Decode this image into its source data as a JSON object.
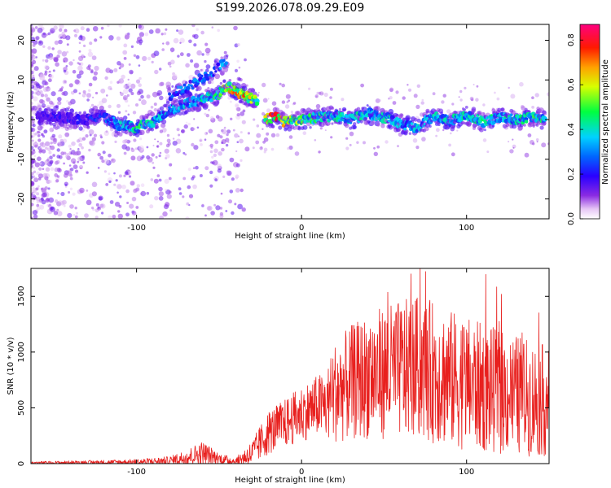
{
  "figure_title": "S199.2026.078.09.29.E09",
  "chart_data": [
    {
      "type": "heatmap",
      "title": "S199.2026.078.09.29.E09",
      "xlabel": "Height of straight line (km)",
      "ylabel": "Frequency (Hz)",
      "xlim": [
        -164,
        150
      ],
      "ylim": [
        -25,
        24
      ],
      "x_ticks": [
        -100,
        0,
        100
      ],
      "x_tick_labels": [
        "-100",
        "0",
        "100"
      ],
      "y_ticks": [
        20,
        10,
        0,
        -10,
        -20
      ],
      "y_tick_labels": [
        "20",
        "10",
        "0",
        "-10",
        "-20"
      ],
      "colorbar": {
        "label": "Normalized spectral amplitude",
        "range": [
          0,
          0.87
        ],
        "ticks": [
          0.0,
          0.2,
          0.4,
          0.6,
          0.8
        ],
        "tick_labels": [
          "0.0",
          "0.2",
          "0.4",
          "0.6",
          "0.8"
        ],
        "colormap": "rainbow (white/violet low to magenta high)"
      },
      "ridge_points": [
        [
          -160,
          0.5,
          0.15
        ],
        [
          -150,
          0.8,
          0.18
        ],
        [
          -140,
          0.3,
          0.2
        ],
        [
          -130,
          -0.2,
          0.2
        ],
        [
          -120,
          1.0,
          0.25
        ],
        [
          -110,
          -1.5,
          0.35
        ],
        [
          -100,
          -2.0,
          0.45
        ],
        [
          -90,
          -0.5,
          0.4
        ],
        [
          -80,
          2.5,
          0.35
        ],
        [
          -70,
          4.0,
          0.35
        ],
        [
          -60,
          5.0,
          0.4
        ],
        [
          -50,
          6.5,
          0.45
        ],
        [
          -45,
          8.5,
          0.6
        ],
        [
          -38,
          7.0,
          0.7
        ],
        [
          -32,
          5.5,
          0.65
        ],
        [
          -27,
          5.0,
          0.5
        ],
        [
          -22,
          0.0,
          0.6
        ],
        [
          -15,
          0.5,
          0.8
        ],
        [
          -10,
          -0.5,
          0.6
        ],
        [
          0,
          0.0,
          0.5
        ],
        [
          10,
          0.5,
          0.45
        ],
        [
          20,
          1.0,
          0.4
        ],
        [
          30,
          0.0,
          0.4
        ],
        [
          40,
          1.5,
          0.4
        ],
        [
          50,
          0.5,
          0.4
        ],
        [
          60,
          -1.0,
          0.35
        ],
        [
          70,
          -2.0,
          0.35
        ],
        [
          80,
          1.0,
          0.4
        ],
        [
          90,
          -0.5,
          0.4
        ],
        [
          100,
          1.0,
          0.4
        ],
        [
          110,
          -0.5,
          0.45
        ],
        [
          120,
          0.5,
          0.4
        ],
        [
          130,
          0.0,
          0.4
        ],
        [
          140,
          0.5,
          0.45
        ],
        [
          148,
          0.0,
          0.4
        ]
      ],
      "secondary_ridge_points": [
        [
          -80,
          6.0,
          0.3
        ],
        [
          -70,
          8.0,
          0.3
        ],
        [
          -60,
          10.5,
          0.3
        ],
        [
          -50,
          13.0,
          0.3
        ],
        [
          -45,
          15.0,
          0.35
        ]
      ]
    },
    {
      "type": "line",
      "title": "",
      "xlabel": "Height of straight line (km)",
      "ylabel": "SNR (10 * v/v)",
      "xlim": [
        -164,
        150
      ],
      "ylim": [
        0,
        1750
      ],
      "x_ticks": [
        -100,
        0,
        100
      ],
      "x_tick_labels": [
        "-100",
        "0",
        "100"
      ],
      "y_ticks": [
        0,
        500,
        1000,
        1500
      ],
      "y_tick_labels": [
        "0",
        "500",
        "1000",
        "1500"
      ],
      "color": "#e8201e",
      "envelope": {
        "x": [
          -164,
          -120,
          -100,
          -80,
          -70,
          -60,
          -50,
          -40,
          -30,
          -20,
          -10,
          0,
          10,
          15,
          20,
          30,
          40,
          50,
          60,
          70,
          80,
          90,
          100,
          110,
          120,
          130,
          140,
          150
        ],
        "base": [
          8,
          12,
          15,
          25,
          55,
          95,
          45,
          20,
          90,
          280,
          360,
          450,
          520,
          520,
          640,
          720,
          780,
          820,
          840,
          860,
          820,
          760,
          720,
          680,
          640,
          620,
          580,
          560
        ],
        "spread": [
          10,
          20,
          25,
          40,
          70,
          110,
          50,
          30,
          120,
          200,
          220,
          250,
          280,
          320,
          450,
          520,
          560,
          600,
          620,
          640,
          640,
          620,
          600,
          580,
          560,
          540,
          520,
          500
        ]
      }
    }
  ]
}
